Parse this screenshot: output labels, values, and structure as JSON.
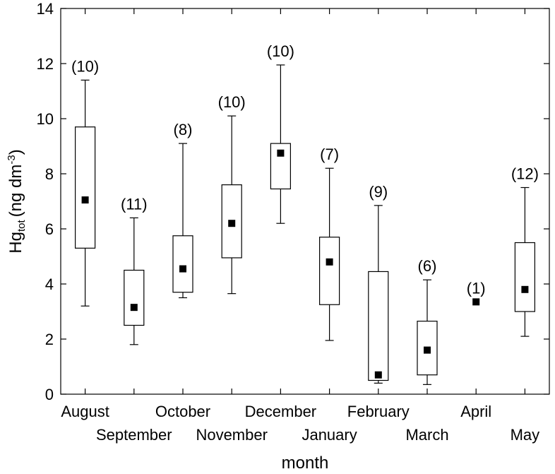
{
  "chart_data": {
    "type": "box",
    "xlabel": "month",
    "ylabel": "Hg",
    "ylabel_sub": "tot",
    "ylabel_unit_prefix": "(ng dm",
    "ylabel_unit_sup": "-3",
    "ylabel_unit_suffix": ")",
    "ylim": [
      0,
      14
    ],
    "yticks": [
      0,
      2,
      4,
      6,
      8,
      10,
      12,
      14
    ],
    "grid": false,
    "categories": [
      "August",
      "September",
      "October",
      "November",
      "December",
      "January",
      "February",
      "March",
      "April",
      "May"
    ],
    "boxes": [
      {
        "category": "August",
        "n_label": "(10)",
        "whisker_low": 3.2,
        "q1": 5.3,
        "median": 7.05,
        "q3": 9.7,
        "whisker_high": 11.4
      },
      {
        "category": "September",
        "n_label": "(11)",
        "whisker_low": 1.8,
        "q1": 2.5,
        "median": 3.15,
        "q3": 4.5,
        "whisker_high": 6.4
      },
      {
        "category": "October",
        "n_label": "(8)",
        "whisker_low": 3.5,
        "q1": 3.7,
        "median": 4.55,
        "q3": 5.75,
        "whisker_high": 9.1
      },
      {
        "category": "November",
        "n_label": "(10)",
        "whisker_low": 3.65,
        "q1": 4.95,
        "median": 6.2,
        "q3": 7.6,
        "whisker_high": 10.1
      },
      {
        "category": "December",
        "n_label": "(10)",
        "whisker_low": 6.2,
        "q1": 7.45,
        "median": 8.75,
        "q3": 9.1,
        "whisker_high": 11.95
      },
      {
        "category": "January",
        "n_label": "(7)",
        "whisker_low": 1.95,
        "q1": 3.25,
        "median": 4.8,
        "q3": 5.7,
        "whisker_high": 8.2
      },
      {
        "category": "February",
        "n_label": "(9)",
        "whisker_low": 0.4,
        "q1": 0.5,
        "median": 0.7,
        "q3": 4.45,
        "whisker_high": 6.85
      },
      {
        "category": "March",
        "n_label": "(6)",
        "whisker_low": 0.35,
        "q1": 0.7,
        "median": 1.6,
        "q3": 2.65,
        "whisker_high": 4.15
      },
      {
        "category": "April",
        "n_label": "(1)",
        "whisker_low": 3.35,
        "q1": 3.35,
        "median": 3.35,
        "q3": 3.35,
        "whisker_high": 3.35
      },
      {
        "category": "May",
        "n_label": "(12)",
        "whisker_low": 2.1,
        "q1": 3.0,
        "median": 3.8,
        "q3": 5.5,
        "whisker_high": 7.5
      }
    ]
  }
}
